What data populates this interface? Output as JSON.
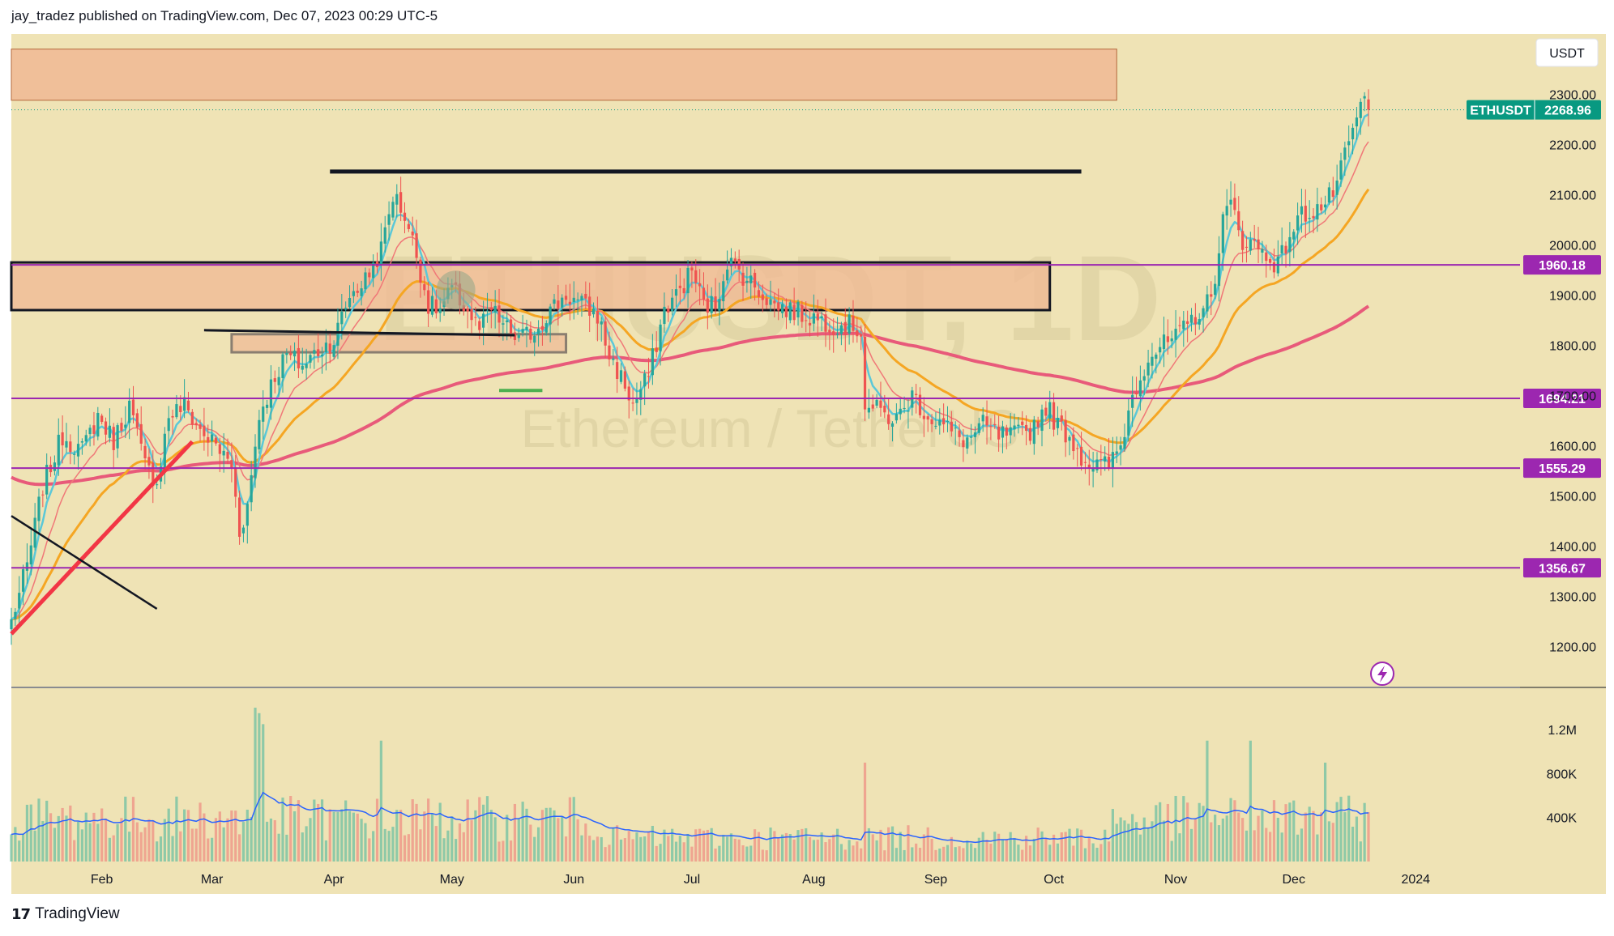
{
  "header": {
    "publisher": "jay_tradez published on TradingView.com, Dec 07, 2023 00:29 UTC-5"
  },
  "footer": {
    "logo": "17",
    "brand": "TradingView"
  },
  "watermark": {
    "symbol": "ETHUSDT, 1D",
    "name": "Ethereum / TetherUS"
  },
  "price_axis": {
    "currency": "USDT"
  },
  "colors": {
    "background": "#efe3b5",
    "zone_fill": "#f0b894",
    "zone_stroke": "#b4683c",
    "up_candle": "#26a69a",
    "down_candle": "#ef5350",
    "ema_fast": "#5bc8d8",
    "ema_mid": "#f07878",
    "ema_50": "#f5a623",
    "ma_200": "#e85a7a",
    "level_line": "#9c27b0",
    "price_badge": "#089981",
    "trend_red": "#f23645",
    "support_green": "#4caf50",
    "volume_ma": "#2962ff"
  },
  "icons": {
    "alert": "lightning-icon",
    "logo": "tradingview-logo-icon"
  },
  "chart_data": {
    "type": "candlestick",
    "symbol": "ETHUSDT",
    "timeframe": "1D",
    "ylim": [
      1120,
      2420
    ],
    "y_ticks": [
      "1200.00",
      "1300.00",
      "1400.00",
      "1500.00",
      "1600.00",
      "1700.00",
      "1800.00",
      "1900.00",
      "2000.00",
      "2100.00",
      "2200.00",
      "2300.00"
    ],
    "x_ticks": [
      "Feb",
      "Mar",
      "Apr",
      "May",
      "Jun",
      "Jul",
      "Aug",
      "Sep",
      "Oct",
      "Nov",
      "Dec",
      "2024"
    ],
    "last_price": {
      "symbol": "ETHUSDT",
      "value": "2268.96"
    },
    "horizontal_levels": [
      {
        "label": "1960.18",
        "value": 1960.18
      },
      {
        "label": "1694.21",
        "value": 1694.21
      },
      {
        "label": "1555.29",
        "value": 1555.29
      },
      {
        "label": "1356.67",
        "value": 1356.67
      }
    ],
    "price_path": [
      [
        0,
        1250
      ],
      [
        4,
        1360
      ],
      [
        8,
        1520
      ],
      [
        13,
        1620
      ],
      [
        18,
        1590
      ],
      [
        22,
        1660
      ],
      [
        26,
        1610
      ],
      [
        30,
        1680
      ],
      [
        34,
        1560
      ],
      [
        37,
        1530
      ],
      [
        40,
        1660
      ],
      [
        44,
        1680
      ],
      [
        48,
        1630
      ],
      [
        52,
        1600
      ],
      [
        56,
        1560
      ],
      [
        58,
        1430
      ],
      [
        60,
        1480
      ],
      [
        63,
        1660
      ],
      [
        67,
        1740
      ],
      [
        70,
        1780
      ],
      [
        74,
        1760
      ],
      [
        78,
        1790
      ],
      [
        82,
        1810
      ],
      [
        86,
        1900
      ],
      [
        90,
        1930
      ],
      [
        94,
        1990
      ],
      [
        97,
        2100
      ],
      [
        100,
        2060
      ],
      [
        103,
        1980
      ],
      [
        106,
        1880
      ],
      [
        109,
        1870
      ],
      [
        112,
        1910
      ],
      [
        115,
        1880
      ],
      [
        119,
        1830
      ],
      [
        122,
        1870
      ],
      [
        125,
        1840
      ],
      [
        129,
        1810
      ],
      [
        133,
        1830
      ],
      [
        137,
        1870
      ],
      [
        141,
        1900
      ],
      [
        145,
        1880
      ],
      [
        149,
        1860
      ],
      [
        152,
        1780
      ],
      [
        156,
        1720
      ],
      [
        158,
        1680
      ],
      [
        162,
        1740
      ],
      [
        166,
        1870
      ],
      [
        170,
        1910
      ],
      [
        173,
        1950
      ],
      [
        176,
        1880
      ],
      [
        179,
        1880
      ],
      [
        182,
        1970
      ],
      [
        186,
        1940
      ],
      [
        190,
        1910
      ],
      [
        194,
        1880
      ],
      [
        198,
        1870
      ],
      [
        202,
        1860
      ],
      [
        206,
        1850
      ],
      [
        210,
        1840
      ],
      [
        213,
        1840
      ],
      [
        216,
        1830
      ],
      [
        217,
        1680
      ],
      [
        220,
        1670
      ],
      [
        225,
        1650
      ],
      [
        229,
        1700
      ],
      [
        233,
        1660
      ],
      [
        237,
        1640
      ],
      [
        240,
        1620
      ],
      [
        243,
        1610
      ],
      [
        247,
        1640
      ],
      [
        251,
        1620
      ],
      [
        255,
        1620
      ],
      [
        259,
        1630
      ],
      [
        263,
        1680
      ],
      [
        266,
        1640
      ],
      [
        269,
        1620
      ],
      [
        272,
        1580
      ],
      [
        275,
        1560
      ],
      [
        279,
        1560
      ],
      [
        282,
        1600
      ],
      [
        285,
        1700
      ],
      [
        289,
        1780
      ],
      [
        293,
        1800
      ],
      [
        297,
        1820
      ],
      [
        301,
        1860
      ],
      [
        305,
        1890
      ],
      [
        308,
        2050
      ],
      [
        310,
        2080
      ],
      [
        313,
        2010
      ],
      [
        316,
        2000
      ],
      [
        319,
        1980
      ],
      [
        322,
        1960
      ],
      [
        325,
        2020
      ],
      [
        328,
        2060
      ],
      [
        331,
        2070
      ],
      [
        334,
        2080
      ],
      [
        337,
        2120
      ],
      [
        340,
        2200
      ],
      [
        342,
        2250
      ],
      [
        344,
        2290
      ],
      [
        345,
        2268.96
      ]
    ],
    "volume_ylim": [
      0,
      1400000
    ],
    "volume_ticks": [
      "400K",
      "800K",
      "1.2M"
    ],
    "volume_spikes": [
      [
        62,
        1400000
      ],
      [
        63,
        1350000
      ],
      [
        64,
        1250000
      ],
      [
        94,
        1100000
      ],
      [
        217,
        900000
      ],
      [
        304,
        1100000
      ],
      [
        315,
        1100000
      ],
      [
        334,
        900000
      ]
    ]
  }
}
